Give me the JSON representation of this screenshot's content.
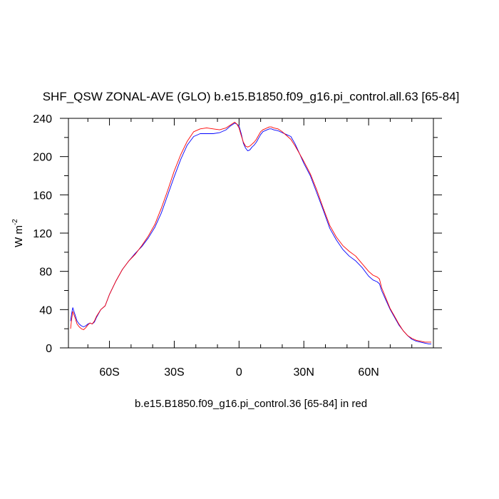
{
  "chart_data": {
    "type": "line",
    "title": "SHF_QSW ZONAL-AVE (GLO) b.e15.B1850.f09_g16.pi_control.all.63 [65-84]",
    "ylabel_main": "W m",
    "ylabel_exp": "-2",
    "xlabel": "b.e15.B1850.f09_g16.pi_control.36 [65-84] in red",
    "xlim": [
      -79,
      90
    ],
    "ylim": [
      0,
      240
    ],
    "xticks": [
      {
        "value": -60,
        "label": "60S"
      },
      {
        "value": -30,
        "label": "30S"
      },
      {
        "value": 0,
        "label": "0"
      },
      {
        "value": 30,
        "label": "30N"
      },
      {
        "value": 60,
        "label": "60N"
      }
    ],
    "yticks": [
      {
        "value": 0,
        "label": "0"
      },
      {
        "value": 40,
        "label": "40"
      },
      {
        "value": 80,
        "label": "80"
      },
      {
        "value": 120,
        "label": "120"
      },
      {
        "value": 160,
        "label": "160"
      },
      {
        "value": 200,
        "label": "200"
      },
      {
        "value": 240,
        "label": "240"
      }
    ],
    "series": [
      {
        "name": "b.e15.B1850.f09_g16.pi_control.all.63 [65-84]",
        "color": "#0000ff",
        "x": [
          -78,
          -77.5,
          -77,
          -76,
          -75,
          -74,
          -73,
          -72,
          -71,
          -70,
          -69,
          -68,
          -67,
          -66,
          -64,
          -62,
          -60,
          -57,
          -54,
          -51,
          -48,
          -45,
          -42,
          -39,
          -36,
          -33,
          -30,
          -27,
          -24,
          -21,
          -18,
          -15,
          -12,
          -9,
          -6,
          -4,
          -2,
          -1,
          0,
          1,
          2,
          3,
          4,
          5,
          6,
          7,
          8,
          9,
          10,
          11,
          12,
          13,
          14,
          15,
          16,
          18,
          20,
          22,
          24,
          26,
          28,
          30,
          33,
          36,
          39,
          42,
          45,
          48,
          51,
          54,
          57,
          60,
          62,
          64,
          65,
          66,
          68,
          70,
          72,
          74,
          76,
          78,
          80,
          82,
          84,
          86,
          88,
          89
        ],
        "y": [
          28,
          36,
          42,
          35,
          28,
          25,
          23,
          22,
          23,
          25,
          26,
          25,
          27,
          32,
          40,
          44,
          56,
          70,
          82,
          91,
          99,
          106,
          115,
          126,
          141,
          160,
          179,
          197,
          212,
          221,
          224,
          224,
          224,
          225,
          228,
          232,
          235,
          234,
          232,
          224,
          214,
          209,
          206,
          207,
          210,
          212,
          215,
          219,
          223,
          226,
          227,
          228,
          229,
          229,
          228,
          227,
          225,
          223,
          221,
          213,
          203,
          193,
          180,
          162,
          144,
          125,
          113,
          103,
          96,
          91,
          84,
          75,
          71,
          69,
          67,
          60,
          50,
          40,
          32,
          24,
          18,
          13,
          9,
          7,
          6,
          5,
          4,
          4
        ]
      },
      {
        "name": "b.e15.B1850.f09_g16.pi_control.36 [65-84]",
        "color": "#ff0000",
        "x": [
          -78,
          -77.5,
          -77,
          -76,
          -75,
          -74,
          -73,
          -72,
          -71,
          -70,
          -69,
          -68,
          -67,
          -66,
          -64,
          -62,
          -60,
          -57,
          -54,
          -51,
          -48,
          -45,
          -42,
          -39,
          -36,
          -33,
          -30,
          -27,
          -24,
          -21,
          -18,
          -15,
          -12,
          -9,
          -6,
          -4,
          -2,
          -1,
          0,
          1,
          2,
          3,
          4,
          5,
          6,
          7,
          8,
          9,
          10,
          11,
          12,
          13,
          14,
          15,
          16,
          18,
          20,
          22,
          24,
          26,
          28,
          30,
          33,
          36,
          39,
          42,
          45,
          48,
          51,
          54,
          57,
          60,
          62,
          64,
          65,
          66,
          68,
          70,
          72,
          74,
          76,
          78,
          80,
          82,
          84,
          86,
          88,
          89
        ],
        "y": [
          20,
          30,
          38,
          32,
          25,
          22,
          20,
          19,
          21,
          24,
          26,
          25,
          28,
          33,
          40,
          44,
          56,
          70,
          82,
          91,
          98,
          107,
          117,
          129,
          146,
          165,
          185,
          202,
          216,
          226,
          229,
          230,
          229,
          228,
          230,
          233,
          236,
          234,
          230,
          222,
          215,
          211,
          210,
          211,
          213,
          215,
          218,
          222,
          226,
          228,
          229,
          230,
          231,
          231,
          230,
          229,
          226,
          222,
          218,
          211,
          203,
          195,
          182,
          165,
          146,
          128,
          116,
          107,
          101,
          96,
          88,
          80,
          76,
          74,
          72,
          63,
          52,
          41,
          33,
          25,
          18,
          13,
          10,
          8,
          7,
          6,
          6,
          6
        ]
      }
    ]
  }
}
